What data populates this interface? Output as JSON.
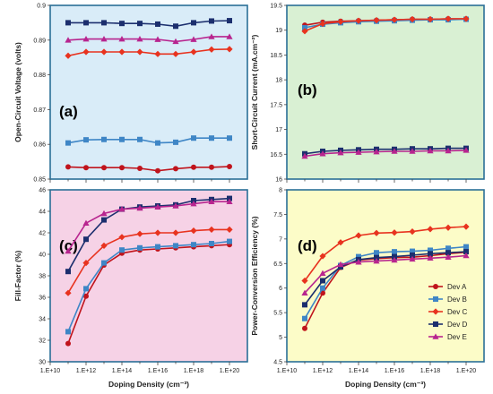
{
  "series_styles": [
    {
      "name": "Dev A",
      "color": "#c0141c",
      "marker": "circle"
    },
    {
      "name": "Dev B",
      "color": "#3f86c6",
      "marker": "square"
    },
    {
      "name": "Dev C",
      "color": "#e8331f",
      "marker": "diamond"
    },
    {
      "name": "Dev D",
      "color": "#1c2f6e",
      "marker": "square"
    },
    {
      "name": "Dev E",
      "color": "#b8258f",
      "marker": "triangle"
    }
  ],
  "chart_data": [
    {
      "type": "line",
      "panel_label": "(a)",
      "background": "#d9ecf8",
      "xlabel": "",
      "ylabel": "Open-Circuit Voltage (volts)",
      "x_scale": "log",
      "xlim": [
        10000000000.0,
        1e+21
      ],
      "ylim": [
        0.85,
        0.9
      ],
      "yticks": [
        "0.85",
        "0.86",
        "0.87",
        "0.88",
        "0.89",
        "0.9"
      ],
      "x_tick_labels_shown": false,
      "x": [
        100000000000.0,
        1000000000000.0,
        10000000000000.0,
        100000000000000.0,
        1000000000000000.0,
        1e+16,
        1e+17,
        1e+18,
        1e+19,
        1e+20
      ],
      "line_series": [
        {
          "name": "Dev A",
          "values": [
            0.8535,
            0.8533,
            0.8533,
            0.8533,
            0.8531,
            0.8524,
            0.853,
            0.8534,
            0.8534,
            0.8536
          ]
        },
        {
          "name": "Dev B",
          "values": [
            0.8604,
            0.8613,
            0.8614,
            0.8614,
            0.8614,
            0.8604,
            0.8606,
            0.8618,
            0.8618,
            0.8618
          ]
        },
        {
          "name": "Dev C",
          "values": [
            0.8855,
            0.8866,
            0.8866,
            0.8866,
            0.8866,
            0.886,
            0.886,
            0.8866,
            0.8873,
            0.8874
          ]
        },
        {
          "name": "Dev D",
          "values": [
            0.895,
            0.895,
            0.895,
            0.8948,
            0.8948,
            0.8946,
            0.894,
            0.895,
            0.8955,
            0.8956
          ]
        },
        {
          "name": "Dev E",
          "values": [
            0.89,
            0.8903,
            0.8903,
            0.8903,
            0.8903,
            0.8902,
            0.8896,
            0.8902,
            0.891,
            0.891
          ]
        }
      ]
    },
    {
      "type": "line",
      "panel_label": "(b)",
      "background": "#d9f0d3",
      "xlabel": "",
      "ylabel": "Short-Circuit Current (mA.cm⁻²)",
      "x_scale": "log",
      "xlim": [
        10000000000.0,
        1e+21
      ],
      "ylim": [
        16,
        19.5
      ],
      "yticks": [
        "16",
        "16.5",
        "17",
        "17.5",
        "18",
        "18.5",
        "19",
        "19.5"
      ],
      "x_tick_labels_shown": false,
      "x": [
        100000000000.0,
        1000000000000.0,
        10000000000000.0,
        100000000000000.0,
        1000000000000000.0,
        1e+16,
        1e+17,
        1e+18,
        1e+19,
        1e+20
      ],
      "line_series": [
        {
          "name": "Dev A",
          "values": [
            19.1,
            19.16,
            19.18,
            19.19,
            19.2,
            19.21,
            19.22,
            19.22,
            19.23,
            19.23
          ]
        },
        {
          "name": "Dev B",
          "values": [
            19.05,
            19.12,
            19.15,
            19.17,
            19.18,
            19.19,
            19.2,
            19.21,
            19.21,
            19.22
          ]
        },
        {
          "name": "Dev C",
          "values": [
            18.98,
            19.13,
            19.17,
            19.19,
            19.2,
            19.21,
            19.22,
            19.22,
            19.23,
            19.23
          ]
        },
        {
          "name": "Dev D",
          "values": [
            16.51,
            16.56,
            16.58,
            16.59,
            16.6,
            16.6,
            16.61,
            16.61,
            16.62,
            16.62
          ]
        },
        {
          "name": "Dev E",
          "values": [
            16.46,
            16.51,
            16.53,
            16.54,
            16.55,
            16.56,
            16.56,
            16.57,
            16.57,
            16.58
          ]
        }
      ]
    },
    {
      "type": "line",
      "panel_label": "(c)",
      "background": "#f6d2e6",
      "xlabel": "Doping Density (cm⁻³)",
      "ylabel": "Fill-Factor (%)",
      "x_scale": "log",
      "xlim": [
        10000000000.0,
        1e+21
      ],
      "ylim": [
        30,
        46
      ],
      "yticks": [
        "30",
        "32",
        "34",
        "36",
        "38",
        "40",
        "42",
        "44",
        "46"
      ],
      "x_tick_labels_shown": true,
      "xticks": [
        "1.E+10",
        "1.E+12",
        "1.E+14",
        "1.E+16",
        "1.E+18",
        "1.E+20"
      ],
      "x": [
        100000000000.0,
        1000000000000.0,
        10000000000000.0,
        100000000000000.0,
        1000000000000000.0,
        1e+16,
        1e+17,
        1e+18,
        1e+19,
        1e+20
      ],
      "line_series": [
        {
          "name": "Dev A",
          "values": [
            31.7,
            36.1,
            39.0,
            40.1,
            40.4,
            40.5,
            40.6,
            40.7,
            40.8,
            40.9
          ]
        },
        {
          "name": "Dev B",
          "values": [
            32.8,
            36.8,
            39.2,
            40.4,
            40.6,
            40.7,
            40.8,
            40.9,
            41.0,
            41.2
          ]
        },
        {
          "name": "Dev C",
          "values": [
            36.4,
            39.2,
            40.8,
            41.6,
            41.9,
            42.0,
            42.0,
            42.2,
            42.3,
            42.3
          ]
        },
        {
          "name": "Dev D",
          "values": [
            38.4,
            41.4,
            43.2,
            44.2,
            44.4,
            44.5,
            44.6,
            45.0,
            45.1,
            45.2
          ]
        },
        {
          "name": "Dev E",
          "values": [
            40.3,
            42.9,
            43.8,
            44.2,
            44.3,
            44.4,
            44.5,
            44.7,
            44.9,
            44.9
          ]
        }
      ]
    },
    {
      "type": "line",
      "panel_label": "(d)",
      "background": "#fcfcc8",
      "xlabel": "Doping Density (cm⁻³)",
      "ylabel": "Power-Conversion Efficiency (%)",
      "x_scale": "log",
      "xlim": [
        10000000000.0,
        1e+21
      ],
      "ylim": [
        4.5,
        8
      ],
      "yticks": [
        "4.5",
        "5",
        "5.5",
        "6",
        "6.5",
        "7",
        "7.5",
        "8"
      ],
      "x_tick_labels_shown": true,
      "xticks": [
        "1.E+10",
        "1.E+12",
        "1.E+14",
        "1.E+16",
        "1.E+18",
        "1.E+20"
      ],
      "x": [
        100000000000.0,
        1000000000000.0,
        10000000000000.0,
        100000000000000.0,
        1000000000000000.0,
        1e+16,
        1e+17,
        1e+18,
        1e+19,
        1e+20
      ],
      "line_series": [
        {
          "name": "Dev A",
          "values": [
            5.18,
            5.9,
            6.42,
            6.57,
            6.6,
            6.62,
            6.63,
            6.66,
            6.7,
            6.73
          ]
        },
        {
          "name": "Dev B",
          "values": [
            5.38,
            6.0,
            6.46,
            6.64,
            6.72,
            6.74,
            6.75,
            6.77,
            6.81,
            6.84
          ]
        },
        {
          "name": "Dev C",
          "values": [
            6.15,
            6.65,
            6.93,
            7.07,
            7.12,
            7.13,
            7.15,
            7.2,
            7.23,
            7.25
          ]
        },
        {
          "name": "Dev D",
          "values": [
            5.66,
            6.15,
            6.43,
            6.58,
            6.62,
            6.64,
            6.67,
            6.7,
            6.72,
            6.74
          ]
        },
        {
          "name": "Dev E",
          "values": [
            5.9,
            6.3,
            6.48,
            6.53,
            6.55,
            6.57,
            6.59,
            6.61,
            6.63,
            6.66
          ]
        }
      ],
      "legend_position": "bottom-right"
    }
  ]
}
